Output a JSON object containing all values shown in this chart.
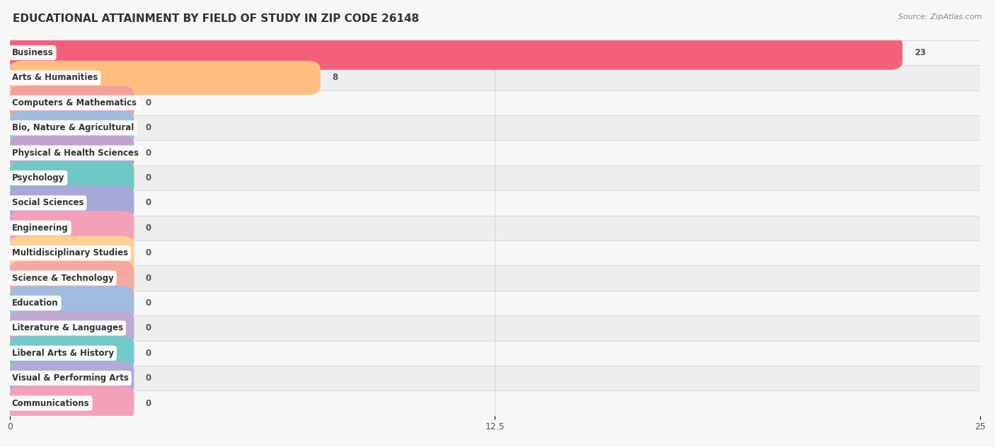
{
  "title": "EDUCATIONAL ATTAINMENT BY FIELD OF STUDY IN ZIP CODE 26148",
  "source": "Source: ZipAtlas.com",
  "categories": [
    "Business",
    "Arts & Humanities",
    "Computers & Mathematics",
    "Bio, Nature & Agricultural",
    "Physical & Health Sciences",
    "Psychology",
    "Social Sciences",
    "Engineering",
    "Multidisciplinary Studies",
    "Science & Technology",
    "Education",
    "Literature & Languages",
    "Liberal Arts & History",
    "Visual & Performing Arts",
    "Communications"
  ],
  "values": [
    23,
    8,
    0,
    0,
    0,
    0,
    0,
    0,
    0,
    0,
    0,
    0,
    0,
    0,
    0
  ],
  "bar_colors": [
    "#F4607A",
    "#FFBE80",
    "#F4A09A",
    "#A0BCE0",
    "#C0A0D0",
    "#70C8C4",
    "#A8A8D8",
    "#F4A0B8",
    "#FFD090",
    "#F4A8A0",
    "#A0BCE0",
    "#C0A8D4",
    "#70CACA",
    "#B0AADE",
    "#F4A0B8"
  ],
  "xlim": [
    0,
    25
  ],
  "xticks": [
    0,
    12.5,
    25
  ],
  "background_color": "#f7f7f7",
  "bar_row_bg_alt": "#eeeeee",
  "title_fontsize": 11,
  "label_fontsize": 8.5,
  "value_fontsize": 8.5,
  "zero_bar_width": 3.2,
  "bar_height": 0.68
}
